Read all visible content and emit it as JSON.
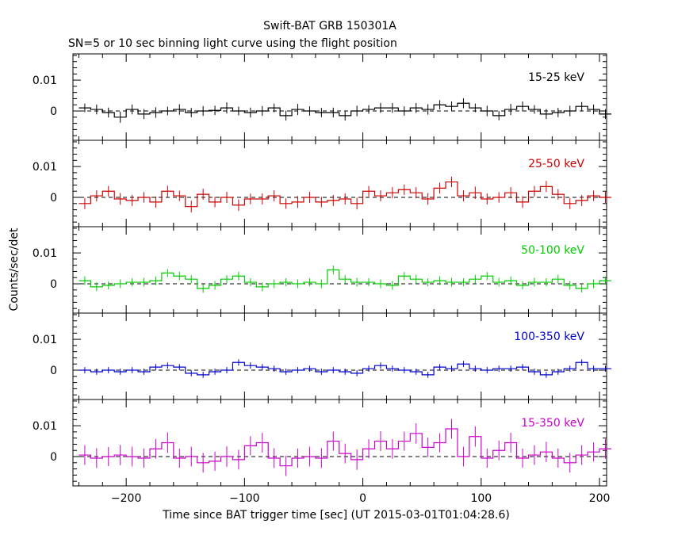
{
  "chart_data": {
    "type": "line",
    "title": "Swift-BAT GRB 150301A",
    "subtitle": "SN=5 or 10 sec binning light curve using the flight position",
    "xlabel": "Time since BAT trigger time [sec] (UT 2015-03-01T01:04:28.6)",
    "ylabel": "Counts/sec/det",
    "xlim": [
      -245,
      206
    ],
    "ylim": [
      -0.0095,
      0.0185
    ],
    "x_ticks": [
      -200,
      -100,
      0,
      100,
      200
    ],
    "y_ticks": [
      "0.01",
      "0"
    ],
    "bin_width": 10,
    "bin_start": -240,
    "panels": [
      {
        "band": "15-25 keV",
        "color": "#000000",
        "errors": [
          0.0014,
          0.0016,
          0.0016,
          0.0018,
          0.0016,
          0.0016,
          0.0017,
          0.0014,
          0.0017,
          0.0015,
          0.0016,
          0.0015,
          0.0018,
          0.0014,
          0.0016,
          0.0016,
          0.0014,
          0.0016,
          0.0018,
          0.0015,
          0.0015,
          0.0016,
          0.0016,
          0.0017,
          0.0014,
          0.0016,
          0.0016,
          0.0015,
          0.0016,
          0.0017,
          0.0015,
          0.0016,
          0.0016,
          0.0014,
          0.0017,
          0.0015,
          0.0018,
          0.0016,
          0.0014,
          0.0016,
          0.0015,
          0.0017,
          0.0014,
          0.0016,
          0.0016
        ],
        "values": [
          0.001,
          0.0005,
          -0.0005,
          -0.002,
          0.0005,
          -0.001,
          -0.0005,
          0.0,
          0.0005,
          -0.0005,
          0.0,
          0.0002,
          0.001,
          0.0,
          -0.0005,
          0.0,
          0.001,
          -0.0015,
          0.0005,
          0.0,
          -0.0005,
          -0.0005,
          -0.0015,
          0.0,
          0.0005,
          0.001,
          0.001,
          0.0,
          0.001,
          0.0005,
          0.002,
          0.0015,
          0.0025,
          0.001,
          0.0,
          -0.0015,
          0.0005,
          0.0015,
          0.0005,
          -0.001,
          -0.0005,
          0.0,
          0.0015,
          0.0005,
          -0.001
        ]
      },
      {
        "band": "25-50 keV",
        "color": "#cc0000",
        "errors": [
          0.0018,
          0.0018,
          0.0017,
          0.0019,
          0.0018,
          0.0017,
          0.0018,
          0.0018,
          0.0017,
          0.0019,
          0.0018,
          0.0017,
          0.0018,
          0.0019,
          0.0017,
          0.0018,
          0.0018,
          0.0017,
          0.0019,
          0.0018,
          0.0017,
          0.0018,
          0.0018,
          0.0019,
          0.0017,
          0.0018,
          0.0018,
          0.0017,
          0.0018,
          0.0019,
          0.0018,
          0.0017,
          0.0018,
          0.002,
          0.0018,
          0.0017,
          0.0018,
          0.0019,
          0.0017,
          0.0018,
          0.0017,
          0.0018,
          0.0018,
          0.0017,
          0.0018
        ],
        "values": [
          -0.002,
          0.0005,
          0.002,
          -0.0005,
          -0.001,
          0.0,
          -0.0015,
          0.002,
          0.0005,
          -0.003,
          0.001,
          -0.0015,
          0.0,
          -0.0025,
          -0.0005,
          -0.0005,
          0.0005,
          -0.002,
          -0.0015,
          0.0,
          -0.0015,
          -0.001,
          -0.0005,
          -0.002,
          0.002,
          0.0005,
          0.0015,
          0.0025,
          0.0015,
          -0.0005,
          0.003,
          0.005,
          0.0005,
          0.0015,
          -0.0005,
          0.0,
          0.0015,
          -0.0015,
          0.002,
          0.0035,
          0.001,
          -0.002,
          -0.001,
          0.0005,
          0.0
        ],
        "mask": [
          1,
          1,
          1,
          1,
          1,
          1,
          1,
          1,
          1,
          1,
          1,
          1,
          1,
          1,
          1,
          1,
          1,
          1,
          1,
          1,
          1,
          1,
          1,
          1,
          1,
          1,
          1,
          1,
          1,
          1,
          1,
          1,
          1,
          1,
          1,
          1,
          1,
          1,
          1,
          1,
          1,
          1,
          1,
          1,
          1
        ]
      },
      {
        "band": "50-100 keV",
        "color": "#00cc00",
        "errors": [
          0.0014,
          0.0014,
          0.0013,
          0.0014,
          0.0013,
          0.0014,
          0.0014,
          0.0013,
          0.0014,
          0.0013,
          0.0014,
          0.0014,
          0.0013,
          0.0014,
          0.0013,
          0.0014,
          0.0014,
          0.0013,
          0.0014,
          0.0013,
          0.0014,
          0.0014,
          0.0013,
          0.0014,
          0.0013,
          0.0014,
          0.0014,
          0.0013,
          0.0014,
          0.0013,
          0.0014,
          0.0014,
          0.0013,
          0.0014,
          0.0013,
          0.0014,
          0.0014,
          0.0013,
          0.0014,
          0.0013,
          0.0014,
          0.0014,
          0.0013,
          0.0014,
          0.0013
        ],
        "values": [
          0.001,
          -0.001,
          -0.0005,
          0.0,
          0.0005,
          0.0005,
          0.001,
          0.0035,
          0.0025,
          0.0015,
          -0.0015,
          -0.0005,
          0.0015,
          0.0025,
          0.0005,
          -0.001,
          0.0,
          0.0005,
          0.0,
          0.0005,
          0.0,
          0.0045,
          0.0015,
          0.0005,
          0.0005,
          0.0,
          -0.0005,
          0.0025,
          0.0015,
          0.0005,
          0.001,
          0.0005,
          0.0005,
          0.0015,
          0.0025,
          0.0005,
          0.001,
          -0.0005,
          0.0005,
          0.0005,
          0.0015,
          -0.0005,
          -0.0015,
          0.0,
          0.001
        ]
      },
      {
        "band": "100-350 keV",
        "color": "#0000cc",
        "errors": [
          0.001,
          0.001,
          0.001,
          0.001,
          0.001,
          0.001,
          0.001,
          0.001,
          0.001,
          0.001,
          0.001,
          0.001,
          0.001,
          0.001,
          0.001,
          0.001,
          0.001,
          0.001,
          0.001,
          0.001,
          0.001,
          0.001,
          0.001,
          0.001,
          0.001,
          0.001,
          0.001,
          0.001,
          0.001,
          0.001,
          0.001,
          0.001,
          0.001,
          0.001,
          0.001,
          0.001,
          0.001,
          0.001,
          0.001,
          0.001,
          0.001,
          0.001,
          0.001,
          0.001,
          0.001
        ],
        "values": [
          0.0,
          -0.0005,
          0.0,
          -0.0005,
          0.0,
          -0.0005,
          0.001,
          0.0015,
          0.001,
          -0.001,
          -0.0015,
          -0.0005,
          0.0,
          0.0025,
          0.0015,
          0.001,
          0.0005,
          -0.0005,
          0.0,
          0.0005,
          -0.0005,
          0.0,
          -0.0005,
          -0.001,
          0.0005,
          0.0015,
          0.0005,
          0.0,
          -0.0005,
          -0.0015,
          0.001,
          0.0005,
          0.002,
          0.0005,
          0.0,
          0.0005,
          0.0005,
          0.001,
          -0.0005,
          -0.0015,
          -0.0005,
          0.0005,
          0.0025,
          0.0005,
          0.0005
        ]
      },
      {
        "band": "15-350 keV",
        "color": "#cc00cc",
        "errors": [
          0.0032,
          0.0032,
          0.0031,
          0.0033,
          0.0032,
          0.0031,
          0.0032,
          0.0033,
          0.0031,
          0.0032,
          0.0032,
          0.0031,
          0.0033,
          0.0032,
          0.0031,
          0.0032,
          0.0032,
          0.0033,
          0.0031,
          0.0032,
          0.0032,
          0.0031,
          0.0032,
          0.0033,
          0.0031,
          0.0032,
          0.0032,
          0.0031,
          0.0033,
          0.0032,
          0.0031,
          0.0032,
          0.0032,
          0.0033,
          0.0031,
          0.0032,
          0.0032,
          0.0031,
          0.0032,
          0.0033,
          0.0031,
          0.0032,
          0.0032,
          0.0031,
          0.0032
        ],
        "values": [
          0.0005,
          -0.0005,
          0.0,
          0.0005,
          0.0,
          -0.0005,
          0.0025,
          0.0045,
          -0.0005,
          0.0,
          -0.002,
          -0.0015,
          0.0,
          -0.001,
          0.0035,
          0.0045,
          -0.0005,
          -0.003,
          -0.0005,
          0.0,
          -0.0005,
          0.005,
          0.001,
          -0.001,
          0.0025,
          0.005,
          0.0025,
          0.005,
          0.0075,
          0.003,
          0.0045,
          0.009,
          0.0,
          0.0065,
          -0.0005,
          0.002,
          0.0045,
          -0.0005,
          0.0005,
          0.0015,
          -0.0005,
          -0.002,
          0.0005,
          0.0015,
          0.0025
        ]
      }
    ]
  }
}
